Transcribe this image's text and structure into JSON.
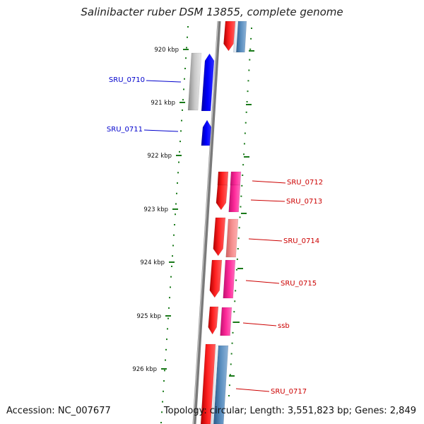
{
  "title": "Salinibacter ruber DSM 13855, complete genome",
  "accession": "Accession: NC_007677",
  "summary": "Topology: circular; Length: 3,551,823 bp; Genes: 2,849",
  "colors": {
    "backbone": "#808080",
    "tick": "#1a7a1a",
    "label_minus": "#0000cc",
    "label_plus": "#cc0000",
    "gene_red": "#ff0000",
    "gene_blue": "#0000ff",
    "gene_magenta": "#ff1493",
    "gene_steelblue": "#4a7fb0",
    "gene_gray": "#b0b0b0",
    "gene_pink": "#f08080"
  },
  "scale_labels": [
    "920 kbp",
    "921 kbp",
    "922 kbp",
    "923 kbp",
    "924 kbp",
    "925 kbp",
    "926 kbp"
  ],
  "gene_labels": [
    {
      "text": "SRU_0710",
      "strand": "minus"
    },
    {
      "text": "SRU_0711",
      "strand": "minus"
    },
    {
      "text": "SRU_0712",
      "strand": "plus"
    },
    {
      "text": "SRU_0713",
      "strand": "plus"
    },
    {
      "text": "SRU_0714",
      "strand": "plus"
    },
    {
      "text": "SRU_0715",
      "strand": "plus"
    },
    {
      "text": "ssb",
      "strand": "plus"
    },
    {
      "text": "SRU_0717",
      "strand": "plus"
    }
  ]
}
